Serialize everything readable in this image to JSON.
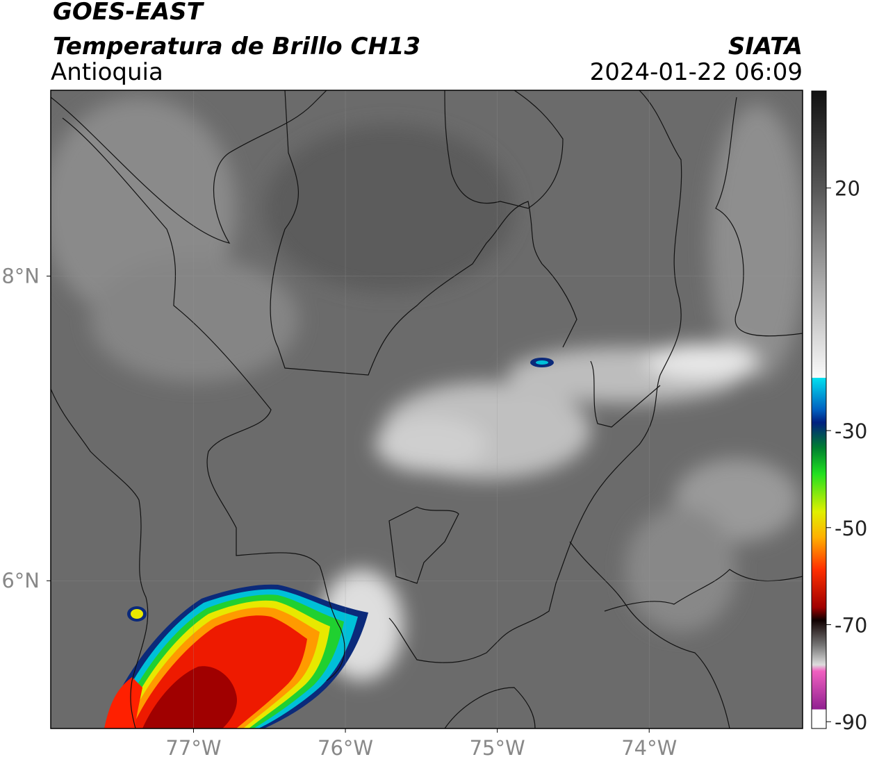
{
  "header": {
    "title": "GOES-EAST",
    "subtitle": "Temperatura de Brillo CH13",
    "region": "Antioquia",
    "source": "SIATA",
    "datetime": "2024-01-22 06:09"
  },
  "map": {
    "xlim": [
      -77.94,
      -72.99
    ],
    "ylim": [
      5.03,
      9.22
    ],
    "xticks": [
      {
        "value": -77,
        "label": "77°W"
      },
      {
        "value": -76,
        "label": "76°W"
      },
      {
        "value": -75,
        "label": "75°W"
      },
      {
        "value": -74,
        "label": "74°W"
      }
    ],
    "yticks": [
      {
        "value": 8,
        "label": "8°N"
      },
      {
        "value": 6,
        "label": "6°N"
      }
    ]
  },
  "colorbar": {
    "lim": [
      -91.4,
      40
    ],
    "ticks": [
      20,
      -30,
      -50,
      -70,
      -90
    ]
  }
}
